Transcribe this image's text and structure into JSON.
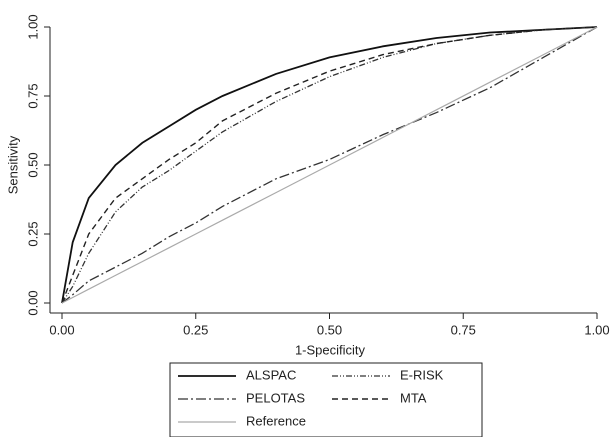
{
  "chart_data": {
    "type": "line",
    "xlabel": "1-Specificity",
    "ylabel": "Sensitivity",
    "x": [
      0,
      0.02,
      0.05,
      0.1,
      0.15,
      0.2,
      0.25,
      0.3,
      0.4,
      0.5,
      0.6,
      0.7,
      0.8,
      0.9,
      1
    ],
    "series": [
      {
        "name": "ALSPAC",
        "color": "#111111",
        "values": [
          0,
          0.22,
          0.38,
          0.5,
          0.58,
          0.64,
          0.7,
          0.75,
          0.83,
          0.89,
          0.93,
          0.96,
          0.98,
          0.99,
          1
        ]
      },
      {
        "name": "E-RISK",
        "color": "#333333",
        "values": [
          0,
          0.06,
          0.18,
          0.33,
          0.42,
          0.48,
          0.55,
          0.62,
          0.73,
          0.82,
          0.89,
          0.94,
          0.97,
          0.99,
          1
        ]
      },
      {
        "name": "PELOTAS",
        "color": "#333333",
        "values": [
          0,
          0.03,
          0.08,
          0.13,
          0.18,
          0.24,
          0.29,
          0.35,
          0.45,
          0.52,
          0.61,
          0.69,
          0.78,
          0.89,
          1
        ]
      },
      {
        "name": "MTA",
        "color": "#222222",
        "values": [
          0,
          0.1,
          0.25,
          0.38,
          0.45,
          0.52,
          0.58,
          0.66,
          0.76,
          0.84,
          0.9,
          0.94,
          0.97,
          0.99,
          1
        ]
      },
      {
        "name": "Reference",
        "color": "#aaaaaa",
        "values": [
          0,
          0.02,
          0.05,
          0.1,
          0.15,
          0.2,
          0.25,
          0.3,
          0.4,
          0.5,
          0.6,
          0.7,
          0.8,
          0.9,
          1
        ]
      }
    ],
    "xlim": [
      0,
      1
    ],
    "ylim": [
      0,
      1
    ],
    "xticks": [
      {
        "value": 0,
        "label": "0.00"
      },
      {
        "value": 0.25,
        "label": "0.25"
      },
      {
        "value": 0.5,
        "label": "0.50"
      },
      {
        "value": 0.75,
        "label": "0.75"
      },
      {
        "value": 1,
        "label": "1.00"
      }
    ],
    "yticks": [
      {
        "value": 0,
        "label": "0.00"
      },
      {
        "value": 0.25,
        "label": "0.25"
      },
      {
        "value": 0.5,
        "label": "0.50"
      },
      {
        "value": 0.75,
        "label": "0.75"
      },
      {
        "value": 1,
        "label": "1.00"
      }
    ],
    "grid": false
  }
}
